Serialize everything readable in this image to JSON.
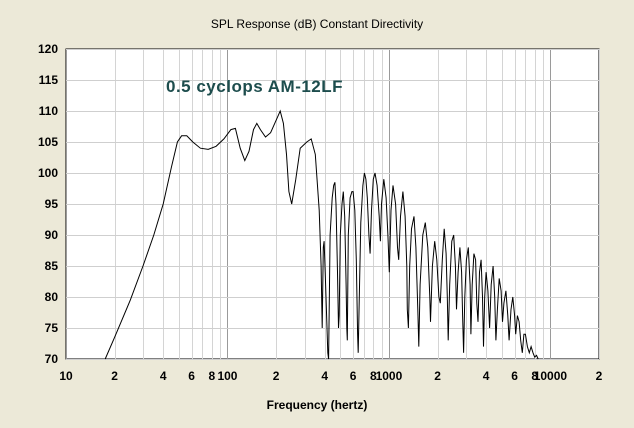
{
  "chart_data": {
    "type": "line",
    "title": "SPL Response (dB)   Constant Directivity",
    "xlabel": "Frequency (hertz)",
    "ylabel": "",
    "xscale": "log",
    "xlim": [
      10,
      20000
    ],
    "ylim": [
      70,
      120
    ],
    "grid": true,
    "annotation": "0.5 cyclops AM-12LF",
    "x_tick_labels": [
      {
        "value": 10,
        "label": "10"
      },
      {
        "value": 20,
        "label": "2"
      },
      {
        "value": 40,
        "label": "4"
      },
      {
        "value": 60,
        "label": "6"
      },
      {
        "value": 80,
        "label": "8"
      },
      {
        "value": 100,
        "label": "100"
      },
      {
        "value": 200,
        "label": "2"
      },
      {
        "value": 400,
        "label": "4"
      },
      {
        "value": 600,
        "label": "6"
      },
      {
        "value": 800,
        "label": "8"
      },
      {
        "value": 1000,
        "label": "1000"
      },
      {
        "value": 2000,
        "label": "2"
      },
      {
        "value": 4000,
        "label": "4"
      },
      {
        "value": 6000,
        "label": "6"
      },
      {
        "value": 8000,
        "label": "8"
      },
      {
        "value": 10000,
        "label": "10000"
      },
      {
        "value": 20000,
        "label": "2"
      }
    ],
    "y_ticks": [
      70,
      75,
      80,
      85,
      90,
      95,
      100,
      105,
      110,
      115,
      120
    ],
    "series": [
      {
        "color": "#000000",
        "points": [
          [
            17.5,
            70
          ],
          [
            20,
            73.5
          ],
          [
            25,
            79.5
          ],
          [
            30,
            85
          ],
          [
            35,
            90
          ],
          [
            40,
            95
          ],
          [
            45,
            101
          ],
          [
            49,
            105
          ],
          [
            52,
            106
          ],
          [
            56,
            106
          ],
          [
            61,
            105
          ],
          [
            68,
            104
          ],
          [
            76,
            103.8
          ],
          [
            85,
            104.3
          ],
          [
            95,
            105.5
          ],
          [
            105,
            107
          ],
          [
            112,
            107.2
          ],
          [
            120,
            104
          ],
          [
            128,
            102
          ],
          [
            136,
            103.5
          ],
          [
            145,
            107
          ],
          [
            152,
            108
          ],
          [
            160,
            107
          ],
          [
            172,
            105.8
          ],
          [
            185,
            106.5
          ],
          [
            200,
            108.5
          ],
          [
            212,
            110
          ],
          [
            222,
            108
          ],
          [
            232,
            103
          ],
          [
            240,
            97
          ],
          [
            250,
            95
          ],
          [
            265,
            99
          ],
          [
            282,
            104
          ],
          [
            310,
            105
          ],
          [
            330,
            105.5
          ],
          [
            350,
            103
          ],
          [
            370,
            94
          ],
          [
            380,
            85
          ],
          [
            386,
            75
          ],
          [
            392,
            88
          ],
          [
            397,
            89
          ],
          [
            403,
            84
          ],
          [
            410,
            78
          ],
          [
            418,
            71
          ],
          [
            423,
            70
          ],
          [
            432,
            90
          ],
          [
            445,
            96
          ],
          [
            455,
            98
          ],
          [
            463,
            98.5
          ],
          [
            470,
            95
          ],
          [
            480,
            84
          ],
          [
            487,
            75
          ],
          [
            492,
            77
          ],
          [
            500,
            90
          ],
          [
            512,
            95
          ],
          [
            522,
            97
          ],
          [
            532,
            93
          ],
          [
            543,
            82
          ],
          [
            548,
            75
          ],
          [
            552,
            73
          ],
          [
            560,
            90
          ],
          [
            575,
            96
          ],
          [
            590,
            97
          ],
          [
            600,
            97
          ],
          [
            615,
            94
          ],
          [
            628,
            86
          ],
          [
            640,
            74
          ],
          [
            645,
            71
          ],
          [
            655,
            80
          ],
          [
            670,
            92
          ],
          [
            690,
            98
          ],
          [
            705,
            100
          ],
          [
            720,
            99
          ],
          [
            735,
            96
          ],
          [
            752,
            90
          ],
          [
            765,
            87
          ],
          [
            780,
            94
          ],
          [
            800,
            99
          ],
          [
            820,
            100
          ],
          [
            845,
            98
          ],
          [
            870,
            93
          ],
          [
            885,
            89
          ],
          [
            900,
            95
          ],
          [
            930,
            99
          ],
          [
            960,
            96
          ],
          [
            985,
            90
          ],
          [
            1005,
            84
          ],
          [
            1030,
            94
          ],
          [
            1060,
            98
          ],
          [
            1100,
            95
          ],
          [
            1130,
            88
          ],
          [
            1150,
            86
          ],
          [
            1180,
            93
          ],
          [
            1220,
            97
          ],
          [
            1260,
            93
          ],
          [
            1290,
            85
          ],
          [
            1300,
            78
          ],
          [
            1320,
            75
          ],
          [
            1345,
            85
          ],
          [
            1380,
            91
          ],
          [
            1430,
            93
          ],
          [
            1470,
            88
          ],
          [
            1510,
            78
          ],
          [
            1530,
            72
          ],
          [
            1560,
            82
          ],
          [
            1620,
            90
          ],
          [
            1680,
            92
          ],
          [
            1740,
            88
          ],
          [
            1790,
            80
          ],
          [
            1810,
            76
          ],
          [
            1860,
            85
          ],
          [
            1920,
            89
          ],
          [
            1980,
            86
          ],
          [
            2040,
            80
          ],
          [
            2080,
            79
          ],
          [
            2140,
            86
          ],
          [
            2200,
            91
          ],
          [
            2260,
            87
          ],
          [
            2300,
            80
          ],
          [
            2330,
            73
          ],
          [
            2380,
            82
          ],
          [
            2450,
            89
          ],
          [
            2520,
            90
          ],
          [
            2580,
            85
          ],
          [
            2620,
            78
          ],
          [
            2680,
            84
          ],
          [
            2750,
            88
          ],
          [
            2820,
            84
          ],
          [
            2860,
            77
          ],
          [
            2900,
            71
          ],
          [
            2950,
            80
          ],
          [
            3020,
            86
          ],
          [
            3100,
            88
          ],
          [
            3180,
            82
          ],
          [
            3220,
            74
          ],
          [
            3280,
            82
          ],
          [
            3360,
            87
          ],
          [
            3440,
            86
          ],
          [
            3500,
            79
          ],
          [
            3560,
            76
          ],
          [
            3640,
            84
          ],
          [
            3720,
            86
          ],
          [
            3800,
            80
          ],
          [
            3850,
            72
          ],
          [
            3920,
            80
          ],
          [
            4000,
            84
          ],
          [
            4100,
            81
          ],
          [
            4200,
            75
          ],
          [
            4300,
            82
          ],
          [
            4420,
            85
          ],
          [
            4520,
            80
          ],
          [
            4600,
            73
          ],
          [
            4700,
            78
          ],
          [
            4820,
            83
          ],
          [
            4950,
            81
          ],
          [
            5050,
            76
          ],
          [
            5150,
            79
          ],
          [
            5300,
            81
          ],
          [
            5450,
            77
          ],
          [
            5550,
            73
          ],
          [
            5700,
            78
          ],
          [
            5850,
            80
          ],
          [
            6000,
            77
          ],
          [
            6100,
            74
          ],
          [
            6250,
            77
          ],
          [
            6400,
            76
          ],
          [
            6550,
            73
          ],
          [
            6700,
            71
          ],
          [
            6850,
            74
          ],
          [
            7000,
            74
          ],
          [
            7200,
            72
          ],
          [
            7400,
            71
          ],
          [
            7600,
            72
          ],
          [
            7800,
            71
          ],
          [
            8000,
            70.3
          ],
          [
            8200,
            70.6
          ],
          [
            8400,
            70
          ]
        ]
      }
    ]
  }
}
